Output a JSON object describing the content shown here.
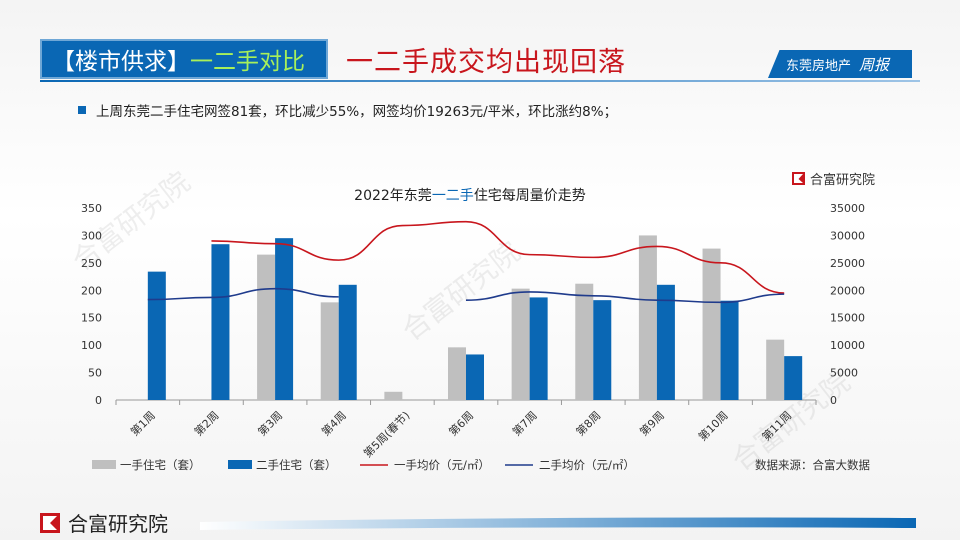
{
  "header": {
    "tag_left": "【楼市供求】",
    "tag_right": "一二手对比",
    "headline": "一二手成交均出现回落",
    "badge": "东莞房地产",
    "badge_script": "周报"
  },
  "summary": "上周东莞二手住宅网签81套，环比减少55%，网签均价19263元/平米，环比涨约8%；",
  "chart_brand": "合富研究院",
  "source_note": "数据来源：合富大数据",
  "footer_brand": "合富研究院",
  "watermark": "合富研究院",
  "colors": {
    "accent_blue": "#0a67b4",
    "bar_grey": "#bfbfbf",
    "line_red": "#c8161d",
    "line_navy": "#1f3b8c",
    "headline_red": "#c8161d"
  },
  "chart_data": {
    "type": "bar",
    "title_parts": [
      "2022年东莞",
      "一二手",
      "住宅每周量价走势"
    ],
    "categories": [
      "第1周",
      "第2周",
      "第3周",
      "第4周",
      "第5周(春节)",
      "第6周",
      "第7周",
      "第8周",
      "第9周",
      "第10周",
      "第11周"
    ],
    "series": [
      {
        "name": "一手住宅（套）",
        "kind": "bar",
        "axis": "left",
        "values": [
          null,
          null,
          265,
          178,
          15,
          96,
          203,
          212,
          300,
          276,
          110
        ]
      },
      {
        "name": "二手住宅（套）",
        "kind": "bar",
        "axis": "left",
        "values": [
          234,
          284,
          295,
          210,
          null,
          83,
          187,
          182,
          210,
          181,
          80
        ]
      },
      {
        "name": "一手均价（元/㎡）",
        "kind": "line",
        "axis": "right",
        "values": [
          null,
          29000,
          28500,
          25500,
          31800,
          32500,
          26500,
          26000,
          28000,
          25000,
          19500
        ]
      },
      {
        "name": "二手均价（元/㎡）",
        "kind": "line",
        "axis": "right",
        "values": [
          18300,
          18700,
          20300,
          18800,
          null,
          18200,
          19700,
          19000,
          18200,
          17800,
          19300
        ]
      }
    ],
    "y_left": {
      "min": 0,
      "max": 350,
      "ticks": [
        0,
        50,
        100,
        150,
        200,
        250,
        300,
        350
      ]
    },
    "y_right": {
      "min": 0,
      "max": 35000,
      "ticks": [
        0,
        5000,
        10000,
        15000,
        20000,
        25000,
        30000,
        35000
      ]
    },
    "grid": false,
    "legend_position": "bottom"
  }
}
